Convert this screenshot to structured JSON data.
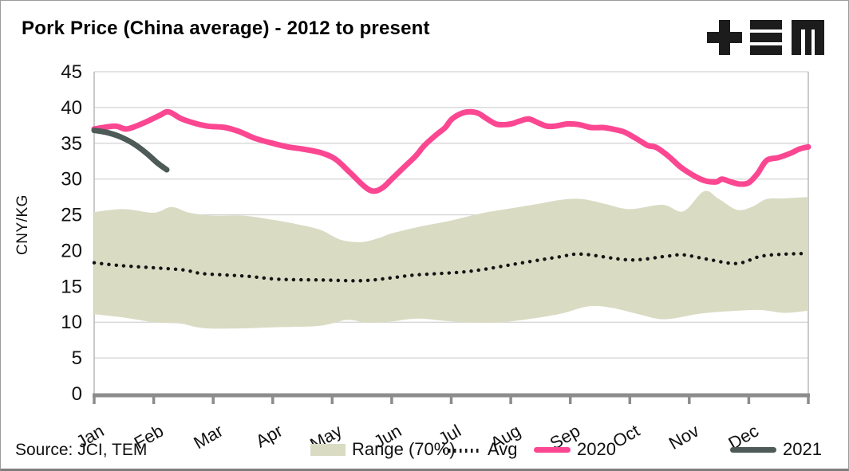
{
  "header": {
    "title": "Pork Price (China average) - 2012 to present",
    "logo_name": "TEM"
  },
  "source": {
    "label": "Source: JCI, TEM"
  },
  "legend": [
    {
      "label": "Range (70%)",
      "swatch": "band",
      "color": "#d9dbc3"
    },
    {
      "label": "Avg",
      "swatch": "dotted-line",
      "color": "#141414"
    },
    {
      "label": "2020",
      "swatch": "line",
      "color": "#fb4792"
    },
    {
      "label": "2021",
      "swatch": "line",
      "color": "#4d5a58"
    }
  ],
  "colors": {
    "line_2020": "#fb4792",
    "line_2021": "#4d5a58",
    "range_band": "#d9dbc3",
    "avg_dots": "#141414",
    "gridline": "#c8c8c8",
    "plot_border": "#b3b3b3",
    "axis": "#8c8c8c",
    "text": "#111111"
  },
  "chart_data": {
    "type": "line",
    "title": "Pork Price (China average) - 2012 to present",
    "xlabel": "",
    "ylabel": "CNY/KG",
    "ylim": [
      0,
      45
    ],
    "y_ticks": [
      0,
      5,
      10,
      15,
      20,
      25,
      30,
      35,
      40,
      45
    ],
    "x_tick_labels": [
      "Jan",
      "Feb",
      "Mar",
      "Apr",
      "May",
      "Jun",
      "Jul",
      "Aug",
      "Sep",
      "Oct",
      "Nov",
      "Dec"
    ],
    "x_units": "months, 0 = Jan 1 and 12 = Dec 31",
    "grid": "horizontal",
    "legend_position": "bottom",
    "series": [
      {
        "name": "Range (70%)",
        "type": "band",
        "color": "#d9dbc3",
        "upper": [
          [
            0,
            25.4
          ],
          [
            0.5,
            25.8
          ],
          [
            1.0,
            25.3
          ],
          [
            1.3,
            26.1
          ],
          [
            1.6,
            25.3
          ],
          [
            2.0,
            24.9
          ],
          [
            2.5,
            24.9
          ],
          [
            3.0,
            24.3
          ],
          [
            3.4,
            23.7
          ],
          [
            3.8,
            22.9
          ],
          [
            4.15,
            21.5
          ],
          [
            4.5,
            21.2
          ],
          [
            4.8,
            21.8
          ],
          [
            5.0,
            22.4
          ],
          [
            5.5,
            23.4
          ],
          [
            6.0,
            24.2
          ],
          [
            6.5,
            25.2
          ],
          [
            7.0,
            25.9
          ],
          [
            7.5,
            26.6
          ],
          [
            7.85,
            27.1
          ],
          [
            8.2,
            27.2
          ],
          [
            8.6,
            26.5
          ],
          [
            9.0,
            25.8
          ],
          [
            9.55,
            26.4
          ],
          [
            9.9,
            25.5
          ],
          [
            10.25,
            28.3
          ],
          [
            10.5,
            27.2
          ],
          [
            10.8,
            25.7
          ],
          [
            11.05,
            26.1
          ],
          [
            11.3,
            27.2
          ],
          [
            11.6,
            27.3
          ],
          [
            12,
            27.5
          ]
        ],
        "lower": [
          [
            0,
            11.1
          ],
          [
            0.45,
            10.7
          ],
          [
            1.0,
            10.0
          ],
          [
            1.45,
            9.8
          ],
          [
            1.8,
            9.2
          ],
          [
            2.3,
            9.1
          ],
          [
            3.1,
            9.3
          ],
          [
            3.8,
            9.5
          ],
          [
            4.25,
            10.3
          ],
          [
            4.6,
            9.9
          ],
          [
            5.0,
            10.1
          ],
          [
            5.45,
            10.5
          ],
          [
            6.0,
            10.1
          ],
          [
            6.6,
            9.9
          ],
          [
            7.1,
            10.2
          ],
          [
            7.8,
            11.1
          ],
          [
            8.3,
            12.2
          ],
          [
            8.7,
            12.0
          ],
          [
            9.2,
            11.0
          ],
          [
            9.6,
            10.4
          ],
          [
            10.2,
            11.2
          ],
          [
            10.8,
            11.6
          ],
          [
            11.2,
            11.7
          ],
          [
            11.6,
            11.3
          ],
          [
            12,
            11.6
          ]
        ]
      },
      {
        "name": "Avg",
        "type": "line",
        "style": "dotted",
        "color": "#141414",
        "points": [
          [
            0,
            18.3
          ],
          [
            0.45,
            17.9
          ],
          [
            1.0,
            17.6
          ],
          [
            1.5,
            17.3
          ],
          [
            1.8,
            16.8
          ],
          [
            2.2,
            16.6
          ],
          [
            2.6,
            16.4
          ],
          [
            3.1,
            16.0
          ],
          [
            3.8,
            15.9
          ],
          [
            4.5,
            15.8
          ],
          [
            5.0,
            16.2
          ],
          [
            5.4,
            16.6
          ],
          [
            6.3,
            17.1
          ],
          [
            7.2,
            18.3
          ],
          [
            7.8,
            19.1
          ],
          [
            8.2,
            19.5
          ],
          [
            9.0,
            18.7
          ],
          [
            9.6,
            19.2
          ],
          [
            9.9,
            19.4
          ],
          [
            10.3,
            18.8
          ],
          [
            10.8,
            18.2
          ],
          [
            11.2,
            19.2
          ],
          [
            11.6,
            19.5
          ],
          [
            12,
            19.6
          ]
        ]
      },
      {
        "name": "2020",
        "type": "line",
        "style": "solid",
        "color": "#fb4792",
        "points": [
          [
            0,
            37.0
          ],
          [
            0.35,
            37.4
          ],
          [
            0.55,
            37.0
          ],
          [
            0.85,
            37.9
          ],
          [
            1.1,
            38.9
          ],
          [
            1.25,
            39.4
          ],
          [
            1.45,
            38.5
          ],
          [
            1.65,
            37.9
          ],
          [
            1.9,
            37.4
          ],
          [
            2.2,
            37.2
          ],
          [
            2.45,
            36.6
          ],
          [
            2.7,
            35.7
          ],
          [
            3.0,
            35.0
          ],
          [
            3.25,
            34.5
          ],
          [
            3.5,
            34.2
          ],
          [
            3.8,
            33.7
          ],
          [
            4.05,
            32.8
          ],
          [
            4.3,
            30.9
          ],
          [
            4.55,
            28.9
          ],
          [
            4.7,
            28.3
          ],
          [
            4.85,
            28.8
          ],
          [
            5.0,
            30.0
          ],
          [
            5.2,
            31.6
          ],
          [
            5.4,
            33.2
          ],
          [
            5.55,
            34.7
          ],
          [
            5.75,
            36.2
          ],
          [
            5.9,
            37.2
          ],
          [
            6.0,
            38.3
          ],
          [
            6.15,
            39.1
          ],
          [
            6.3,
            39.4
          ],
          [
            6.45,
            39.2
          ],
          [
            6.55,
            38.7
          ],
          [
            6.7,
            37.9
          ],
          [
            6.8,
            37.6
          ],
          [
            7.0,
            37.7
          ],
          [
            7.15,
            38.1
          ],
          [
            7.3,
            38.4
          ],
          [
            7.45,
            37.9
          ],
          [
            7.6,
            37.4
          ],
          [
            7.75,
            37.4
          ],
          [
            7.95,
            37.7
          ],
          [
            8.15,
            37.6
          ],
          [
            8.35,
            37.2
          ],
          [
            8.55,
            37.2
          ],
          [
            8.7,
            37.0
          ],
          [
            8.9,
            36.6
          ],
          [
            9.1,
            35.7
          ],
          [
            9.3,
            34.7
          ],
          [
            9.45,
            34.4
          ],
          [
            9.65,
            33.2
          ],
          [
            9.85,
            31.7
          ],
          [
            10.05,
            30.6
          ],
          [
            10.25,
            29.8
          ],
          [
            10.45,
            29.6
          ],
          [
            10.55,
            30.0
          ],
          [
            10.7,
            29.6
          ],
          [
            10.85,
            29.3
          ],
          [
            11.0,
            29.5
          ],
          [
            11.15,
            30.8
          ],
          [
            11.3,
            32.6
          ],
          [
            11.5,
            33.0
          ],
          [
            11.7,
            33.6
          ],
          [
            11.85,
            34.2
          ],
          [
            12,
            34.5
          ]
        ]
      },
      {
        "name": "2021",
        "type": "line",
        "style": "solid",
        "color": "#4d5a58",
        "points": [
          [
            0,
            36.8
          ],
          [
            0.22,
            36.5
          ],
          [
            0.44,
            35.9
          ],
          [
            0.67,
            34.9
          ],
          [
            0.88,
            33.6
          ],
          [
            1.07,
            32.2
          ],
          [
            1.22,
            31.3
          ]
        ]
      }
    ]
  }
}
